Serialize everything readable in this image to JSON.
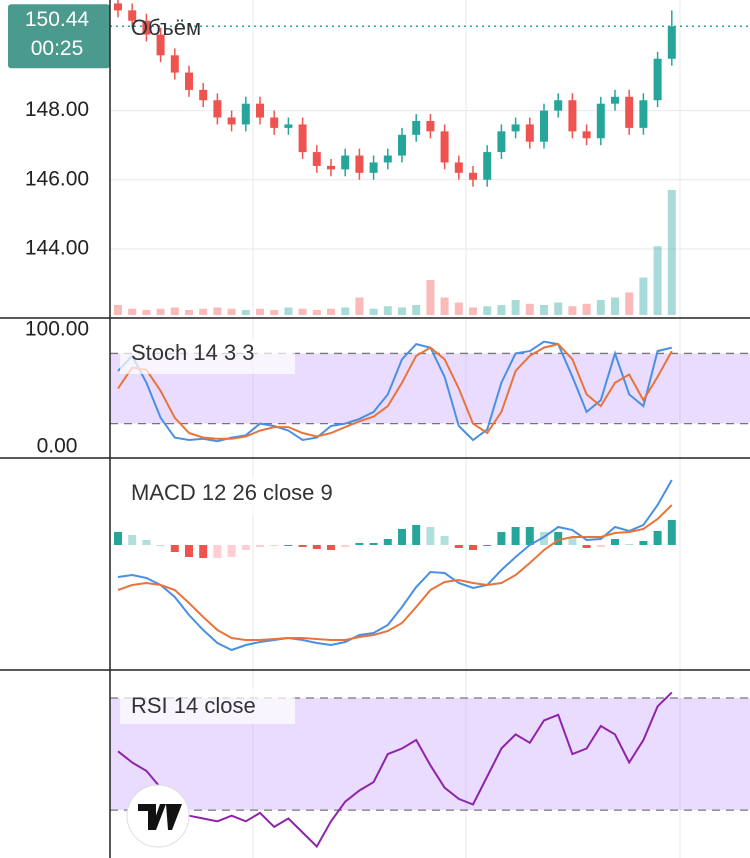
{
  "chart_data": [
    {
      "type": "candlestick",
      "volume_label": "Объём",
      "open": [
        151.1,
        150.9,
        150.6,
        150.2,
        149.6,
        149.1,
        148.6,
        148.3,
        147.8,
        147.6,
        148.2,
        147.8,
        147.5,
        147.6,
        146.8,
        146.4,
        146.3,
        146.7,
        146.2,
        146.5,
        146.7,
        147.3,
        147.7,
        147.4,
        146.5,
        146.2,
        146.0,
        146.8,
        147.4,
        147.6,
        147.1,
        148.0,
        148.3,
        147.4,
        147.2,
        148.2,
        148.4,
        147.5,
        148.3,
        149.5
      ],
      "high": [
        151.3,
        151.1,
        150.8,
        150.4,
        149.8,
        149.3,
        148.8,
        148.5,
        148.0,
        148.4,
        148.4,
        148.0,
        147.8,
        147.8,
        147.0,
        146.6,
        146.9,
        146.9,
        146.7,
        146.9,
        147.5,
        147.9,
        147.9,
        147.6,
        146.7,
        146.4,
        147.0,
        147.6,
        147.8,
        147.8,
        148.2,
        148.5,
        148.5,
        147.6,
        148.4,
        148.6,
        148.6,
        148.5,
        149.7,
        150.9
      ],
      "low": [
        150.7,
        150.4,
        150.0,
        149.4,
        148.9,
        148.4,
        148.1,
        147.6,
        147.4,
        147.4,
        147.6,
        147.3,
        147.3,
        146.6,
        146.2,
        146.1,
        146.1,
        146.0,
        146.0,
        146.3,
        146.5,
        147.1,
        147.2,
        146.3,
        146.0,
        145.8,
        145.8,
        146.6,
        147.2,
        146.9,
        146.9,
        147.8,
        147.2,
        147.0,
        147.0,
        148.0,
        147.3,
        147.3,
        148.1,
        149.3
      ],
      "close": [
        150.9,
        150.6,
        150.2,
        149.6,
        149.1,
        148.6,
        148.3,
        147.8,
        147.6,
        148.2,
        147.8,
        147.5,
        147.6,
        146.8,
        146.4,
        146.3,
        146.7,
        146.2,
        146.5,
        146.7,
        147.3,
        147.7,
        147.4,
        146.5,
        146.2,
        146.0,
        146.8,
        147.4,
        147.6,
        147.1,
        148.0,
        148.3,
        147.4,
        147.2,
        148.2,
        148.4,
        147.5,
        148.3,
        149.5,
        150.44
      ],
      "volume": [
        8,
        5,
        4,
        5,
        6,
        4,
        5,
        6,
        5,
        4,
        5,
        4,
        6,
        5,
        4,
        5,
        6,
        14,
        5,
        7,
        6,
        8,
        28,
        14,
        10,
        6,
        7,
        8,
        12,
        9,
        8,
        10,
        7,
        9,
        12,
        14,
        18,
        30,
        55,
        100
      ],
      "volume_ylim": [
        0,
        100
      ],
      "up_color": "#26a69a",
      "down_color": "#ef5350",
      "ylim": [
        142,
        151.2
      ],
      "yticks": [
        {
          "value": 144,
          "label": "144.00"
        },
        {
          "value": 146,
          "label": "146.00"
        },
        {
          "value": 148,
          "label": "148.00"
        }
      ],
      "grid": true,
      "last_price": {
        "value": 150.44,
        "label": "150.44"
      },
      "countdown": "00:25"
    },
    {
      "type": "line",
      "title": "Stoch 14 3 3",
      "series": [
        {
          "color": "#4a90e2",
          "values": [
            65,
            78,
            55,
            25,
            8,
            6,
            7,
            5,
            8,
            10,
            20,
            18,
            14,
            6,
            8,
            18,
            20,
            24,
            30,
            45,
            75,
            88,
            85,
            60,
            18,
            6,
            15,
            55,
            80,
            82,
            90,
            88,
            60,
            30,
            40,
            80,
            45,
            35,
            82,
            85
          ]
        },
        {
          "color": "#e8743b",
          "values": [
            50,
            68,
            66,
            48,
            25,
            12,
            8,
            7,
            7,
            9,
            14,
            17,
            17,
            12,
            9,
            12,
            17,
            22,
            26,
            35,
            55,
            78,
            85,
            75,
            50,
            20,
            12,
            30,
            65,
            78,
            85,
            88,
            75,
            45,
            35,
            55,
            62,
            40,
            60,
            82
          ]
        }
      ],
      "bands": [
        20,
        80
      ],
      "ylim": [
        -9.4,
        110.3
      ],
      "yticks": [
        {
          "value": 100,
          "label": "100.00"
        },
        {
          "value": 0,
          "label": "0.00"
        }
      ]
    },
    {
      "type": "macd",
      "title": "MACD 12 26 close 9",
      "series": [
        {
          "color": "#4a90e2",
          "values": [
            -0.32,
            -0.3,
            -0.33,
            -0.4,
            -0.52,
            -0.7,
            -0.85,
            -0.98,
            -1.05,
            -1.0,
            -0.97,
            -0.95,
            -0.93,
            -0.95,
            -0.98,
            -1.0,
            -0.97,
            -0.9,
            -0.88,
            -0.8,
            -0.62,
            -0.42,
            -0.27,
            -0.28,
            -0.38,
            -0.43,
            -0.4,
            -0.25,
            -0.12,
            0.0,
            0.08,
            0.18,
            0.15,
            0.05,
            0.06,
            0.18,
            0.14,
            0.2,
            0.4,
            0.65
          ]
        },
        {
          "color": "#e8743b",
          "values": [
            -0.45,
            -0.4,
            -0.38,
            -0.4,
            -0.45,
            -0.58,
            -0.72,
            -0.85,
            -0.93,
            -0.95,
            -0.95,
            -0.94,
            -0.93,
            -0.93,
            -0.94,
            -0.95,
            -0.95,
            -0.92,
            -0.9,
            -0.86,
            -0.78,
            -0.62,
            -0.45,
            -0.37,
            -0.35,
            -0.38,
            -0.4,
            -0.38,
            -0.3,
            -0.18,
            -0.05,
            0.05,
            0.08,
            0.08,
            0.08,
            0.12,
            0.13,
            0.16,
            0.26,
            0.4
          ]
        }
      ],
      "histogram": [
        0.13,
        0.1,
        0.05,
        0,
        -0.07,
        -0.12,
        -0.13,
        -0.13,
        -0.12,
        -0.05,
        -0.02,
        -0.01,
        0,
        -0.02,
        -0.04,
        -0.05,
        -0.02,
        0.02,
        0.02,
        0.06,
        0.16,
        0.2,
        0.18,
        0.09,
        -0.03,
        -0.05,
        0,
        0.13,
        0.18,
        0.18,
        0.13,
        0.13,
        0.07,
        -0.03,
        -0.02,
        0.06,
        0.01,
        0.04,
        0.14,
        0.25
      ],
      "ylim": [
        -1.25,
        0.87
      ]
    },
    {
      "type": "line",
      "title": "RSI 14 close",
      "series": [
        {
          "color": "#8e24aa",
          "values": [
            51,
            47,
            44,
            38,
            30,
            28,
            27,
            26,
            28,
            26,
            29,
            24,
            27,
            22,
            17,
            26,
            33,
            37,
            40,
            50,
            52,
            55,
            46,
            38,
            34,
            32,
            42,
            52,
            57,
            54,
            62,
            64,
            50,
            52,
            60,
            57,
            47,
            55,
            67,
            72
          ]
        }
      ],
      "bands": [
        30,
        70
      ],
      "ylim": [
        12.9,
        80
      ]
    }
  ]
}
